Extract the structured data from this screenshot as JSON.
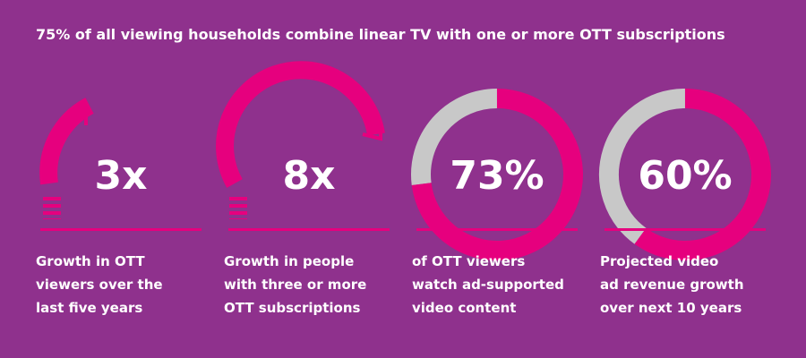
{
  "title": "75% of all viewing households combine linear TV with one or more OTT subscriptions",
  "stats": [
    {
      "label": "3x",
      "caption": [
        "Growth in OTT",
        "viewers over the",
        "last five years"
      ]
    },
    {
      "label": "8x",
      "caption": [
        "Growth in people",
        "with three or more",
        "OTT subscriptions"
      ]
    },
    {
      "label": "73%",
      "value": 73,
      "caption": [
        "of OTT viewers",
        "watch ad-supported",
        "video content"
      ]
    },
    {
      "label": "60%",
      "value": 60,
      "caption": [
        "Projected video",
        "ad revenue growth",
        "over next 10 years"
      ]
    }
  ]
}
